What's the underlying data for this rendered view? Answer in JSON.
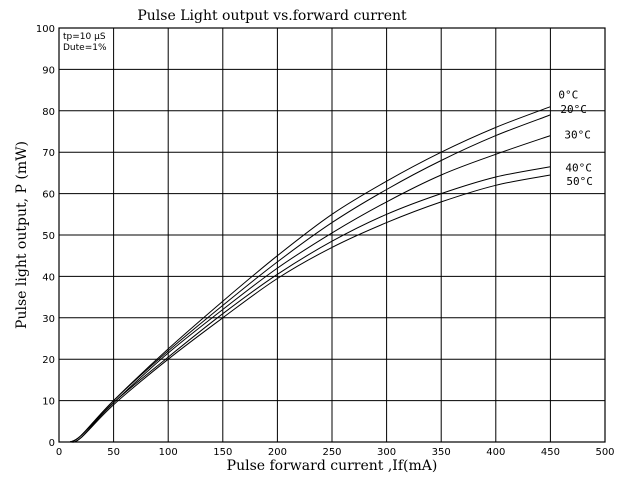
{
  "chart_data": {
    "type": "line",
    "title": "Pulse Light output vs.forward current",
    "xlabel": "Pulse forward current ,If(mA)",
    "ylabel": "Pulse light output, P (mW)",
    "xlim": [
      0,
      500
    ],
    "ylim": [
      0,
      100
    ],
    "x_ticks": [
      "0",
      "50",
      "100",
      "150",
      "200",
      "250",
      "300",
      "350",
      "400",
      "450",
      "500"
    ],
    "y_ticks": [
      "0",
      "10",
      "20",
      "30",
      "40",
      "50",
      "60",
      "70",
      "80",
      "90",
      "100"
    ],
    "grid": true,
    "conditions": [
      "tp=10 µS",
      "Dute=1%"
    ],
    "series": [
      {
        "name": "0°C",
        "x": [
          10,
          20,
          50,
          100,
          150,
          200,
          250,
          300,
          350,
          400,
          450
        ],
        "values": [
          0,
          1.5,
          10,
          22.5,
          34,
          45,
          55,
          63,
          70,
          76,
          81
        ]
      },
      {
        "name": "20°C",
        "x": [
          10,
          20,
          50,
          100,
          150,
          200,
          250,
          300,
          350,
          400,
          450
        ],
        "values": [
          0,
          1.5,
          10,
          22,
          33,
          43.5,
          53,
          61,
          68,
          74,
          79
        ]
      },
      {
        "name": "30°C",
        "x": [
          10,
          20,
          50,
          100,
          150,
          200,
          250,
          300,
          350,
          400,
          450
        ],
        "values": [
          0,
          1.5,
          9.5,
          21.5,
          32,
          42,
          50.5,
          58,
          64.5,
          69.5,
          74
        ]
      },
      {
        "name": "40°C",
        "x": [
          10,
          20,
          50,
          100,
          150,
          200,
          250,
          300,
          350,
          400,
          450
        ],
        "values": [
          0,
          1,
          9.5,
          20.5,
          31,
          40.5,
          48.5,
          55,
          60,
          64,
          66.5
        ]
      },
      {
        "name": "50°C",
        "x": [
          10,
          20,
          50,
          100,
          150,
          200,
          250,
          300,
          350,
          400,
          450
        ],
        "values": [
          0,
          1,
          9,
          20,
          30,
          39.5,
          47,
          53,
          58,
          62,
          64.5
        ]
      }
    ]
  }
}
